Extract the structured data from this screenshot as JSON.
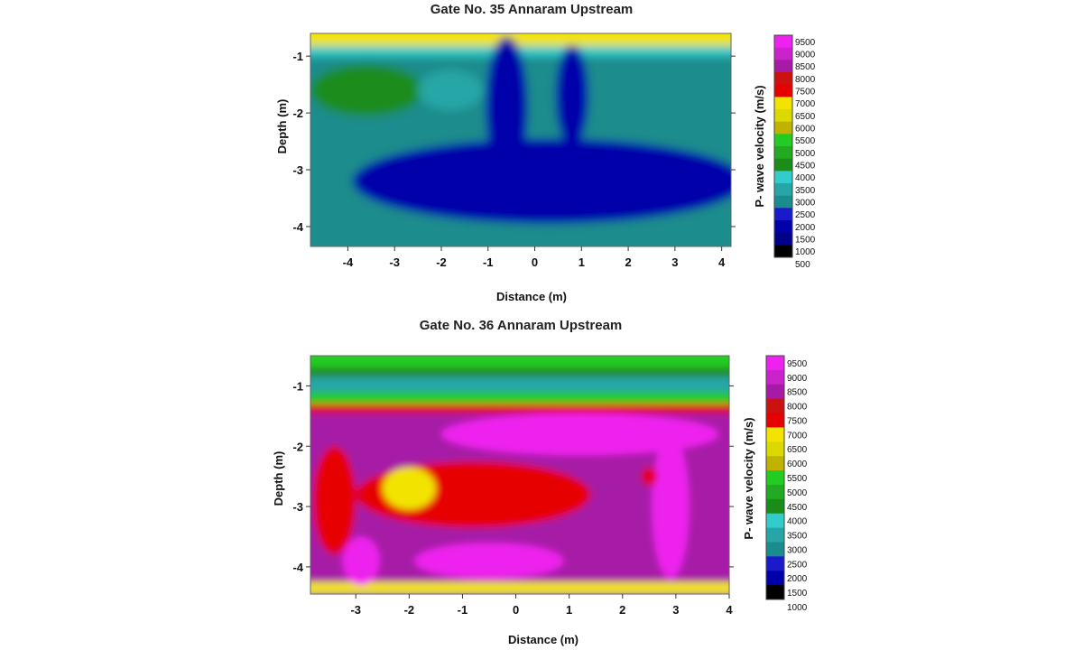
{
  "chart_data": [
    {
      "type": "heatmap",
      "title": "Gate No. 35  Annaram Upstream",
      "xlabel": "Distance (m)",
      "ylabel": "Depth (m)",
      "colorbar_label": "P- wave velocity (m/s)",
      "xlim": [
        -4.8,
        4.2
      ],
      "ylim": [
        -4.35,
        -0.6
      ],
      "xticks": [
        -4,
        -3,
        -2,
        -1,
        0,
        1,
        2,
        3,
        4
      ],
      "yticks": [
        -1,
        -2,
        -3,
        -4
      ],
      "colorbar_ticks": [
        9500,
        9000,
        8500,
        8000,
        7500,
        7000,
        6500,
        6000,
        5500,
        5000,
        4500,
        4000,
        3500,
        3000,
        2500,
        2000,
        1500,
        1000,
        500
      ],
      "colorbar_colors": [
        "#ee22ee",
        "#cc22cc",
        "#a61aa6",
        "#cc1111",
        "#e60000",
        "#f2e400",
        "#dada00",
        "#c2b200",
        "#22cc22",
        "#22aa22",
        "#1a8c1a",
        "#33cccc",
        "#26a6a6",
        "#1a8c8c",
        "#1a1acc",
        "#0000aa",
        "#000088",
        "#000000"
      ],
      "field_base_velocity": 2800,
      "features": [
        {
          "shape": "band",
          "depth_top": -0.6,
          "depth_bottom": -0.82,
          "velocity": 6500
        },
        {
          "shape": "band",
          "depth_top": -0.82,
          "depth_bottom": -1.0,
          "velocity": 3600
        },
        {
          "shape": "ellipse",
          "x": -3.6,
          "depth": -1.6,
          "rx": 1.2,
          "ry": 0.45,
          "velocity": 4200
        },
        {
          "shape": "ellipse",
          "x": -1.8,
          "depth": -1.6,
          "rx": 0.7,
          "ry": 0.35,
          "velocity": 3200
        },
        {
          "shape": "ellipse",
          "x": 0.3,
          "depth": -3.2,
          "rx": 4.2,
          "ry": 0.75,
          "velocity": 1800
        },
        {
          "shape": "ellipse",
          "x": -0.6,
          "depth": -1.9,
          "rx": 0.45,
          "ry": 1.25,
          "velocity": 1800
        },
        {
          "shape": "ellipse",
          "x": 0.8,
          "depth": -1.7,
          "rx": 0.35,
          "ry": 0.9,
          "velocity": 1800
        },
        {
          "shape": "ellipse",
          "x": -0.5,
          "depth": -2.6,
          "rx": 0.3,
          "ry": 0.6,
          "velocity": 1500
        },
        {
          "shape": "ellipse",
          "x": 3.2,
          "depth": -1.5,
          "rx": 0.9,
          "ry": 0.45,
          "velocity": 2900
        }
      ]
    },
    {
      "type": "heatmap",
      "title": "Gate No. 36  Annaram Upstream",
      "xlabel": "Distance (m)",
      "ylabel": "Depth (m)",
      "colorbar_label": "P- wave velocity (m/s)",
      "xlim": [
        -3.85,
        4.0
      ],
      "ylim": [
        -4.45,
        -0.5
      ],
      "xticks": [
        -3,
        -2,
        -1,
        0,
        1,
        2,
        3,
        4
      ],
      "yticks": [
        -1,
        -2,
        -3,
        -4
      ],
      "colorbar_ticks": [
        9500,
        9000,
        8500,
        8000,
        7500,
        7000,
        6500,
        6000,
        5500,
        5000,
        4500,
        4000,
        3500,
        3000,
        2500,
        2000,
        1500,
        1000
      ],
      "colorbar_colors": [
        "#ee22ee",
        "#cc22cc",
        "#a61aa6",
        "#cc1111",
        "#e60000",
        "#f2e400",
        "#dada00",
        "#c2b200",
        "#22cc22",
        "#22aa22",
        "#1a8c1a",
        "#33cccc",
        "#26a6a6",
        "#1a8c8c",
        "#1a1acc",
        "#0000aa",
        "#000000"
      ],
      "field_base_velocity": 8200,
      "features": [
        {
          "shape": "band",
          "depth_top": -0.5,
          "depth_bottom": -0.7,
          "velocity": 5200
        },
        {
          "shape": "band",
          "depth_top": -0.7,
          "depth_bottom": -0.85,
          "velocity": 4200
        },
        {
          "shape": "band",
          "depth_top": -0.85,
          "depth_bottom": -1.1,
          "velocity": 3200
        },
        {
          "shape": "band",
          "depth_top": -1.1,
          "depth_bottom": -1.3,
          "velocity": 5000
        },
        {
          "shape": "band",
          "depth_top": -1.3,
          "depth_bottom": -1.45,
          "velocity": 7400
        },
        {
          "shape": "band",
          "depth_top": -4.25,
          "depth_bottom": -4.45,
          "velocity": 6800
        },
        {
          "shape": "ellipse",
          "x": 1.2,
          "depth": -1.8,
          "rx": 2.6,
          "ry": 0.35,
          "velocity": 9000
        },
        {
          "shape": "ellipse",
          "x": -3.4,
          "depth": -2.9,
          "rx": 0.4,
          "ry": 0.9,
          "velocity": 7200
        },
        {
          "shape": "ellipse",
          "x": -0.8,
          "depth": -2.8,
          "rx": 2.2,
          "ry": 0.55,
          "velocity": 7200
        },
        {
          "shape": "ellipse",
          "x": -2.0,
          "depth": -2.7,
          "rx": 0.5,
          "ry": 0.35,
          "velocity": 6500
        },
        {
          "shape": "ellipse",
          "x": -0.5,
          "depth": -3.9,
          "rx": 1.4,
          "ry": 0.3,
          "velocity": 9000
        },
        {
          "shape": "ellipse",
          "x": 2.9,
          "depth": -3.0,
          "rx": 0.35,
          "ry": 1.2,
          "velocity": 9000
        },
        {
          "shape": "ellipse",
          "x": 2.5,
          "depth": -2.5,
          "rx": 0.15,
          "ry": 0.15,
          "velocity": 7200
        },
        {
          "shape": "ellipse",
          "x": -2.9,
          "depth": -3.9,
          "rx": 0.35,
          "ry": 0.4,
          "velocity": 9000
        }
      ]
    }
  ]
}
